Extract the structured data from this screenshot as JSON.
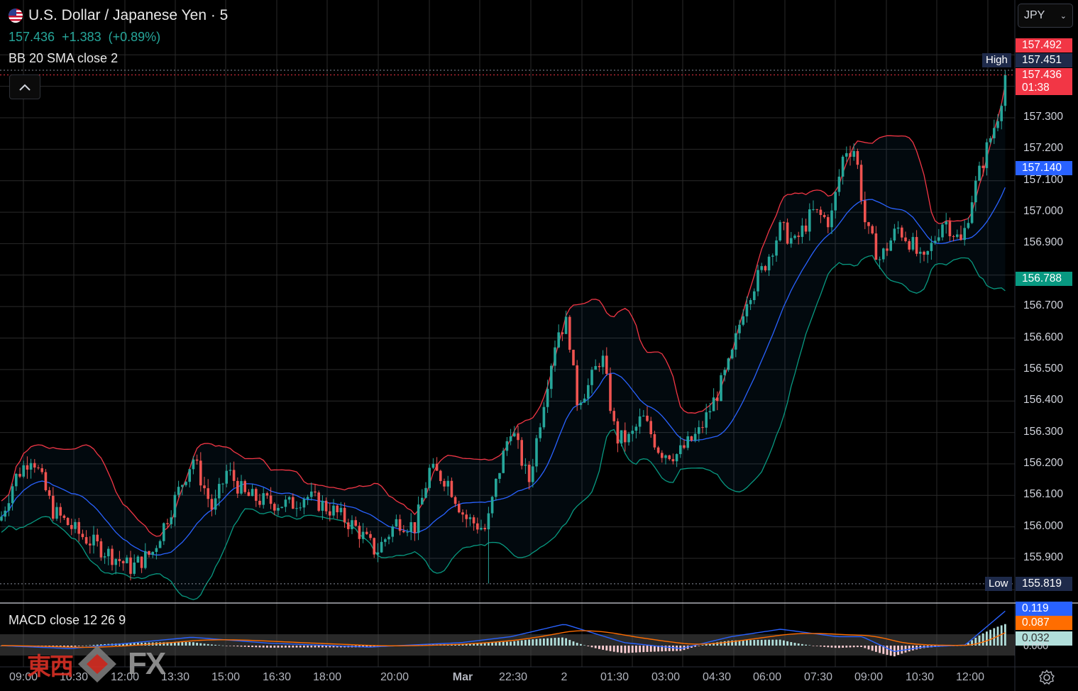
{
  "header": {
    "symbol_title": "U.S. Dollar / Japanese Yen · 5",
    "last_price": "157.436",
    "change": "+1.383",
    "change_pct": "(+0.89%)",
    "bb_indicator": "BB 20 SMA close 2",
    "macd_indicator": "MACD close 12 26 9"
  },
  "currency_select": {
    "value": "JPY"
  },
  "price_axis": {
    "labels": [
      "157.300",
      "157.200",
      "157.100",
      "157.000",
      "156.900",
      "156.700",
      "156.600",
      "156.500",
      "156.400",
      "156.300",
      "156.200",
      "156.100",
      "156.000",
      "155.900"
    ],
    "tags": {
      "upper_band": "157.492",
      "high_label": "High",
      "high": "157.451",
      "last": "157.436",
      "countdown": "01:38",
      "basis": "157.140",
      "lower_band": "156.788",
      "low_label": "Low",
      "low": "155.819"
    }
  },
  "macd_axis": {
    "macd": "0.119",
    "signal": "0.087",
    "histogram": "0.032",
    "zero": "0.000"
  },
  "time_axis": {
    "labels": [
      "09:00",
      "10:30",
      "12:00",
      "13:30",
      "15:00",
      "16:30",
      "18:00",
      "20:00",
      "Mar",
      "22:30",
      "2",
      "01:30",
      "03:00",
      "04:30",
      "06:00",
      "07:30",
      "09:00",
      "10:30",
      "12:00"
    ]
  },
  "watermark": {
    "cjk": "東西",
    "latin": "FX"
  },
  "colors": {
    "up": "#26a69a",
    "down": "#ef5350",
    "upper_band": "#f23645",
    "basis": "#2962ff",
    "lower_band": "#089981",
    "macd_line": "#2962ff",
    "signal_line": "#ff6d00"
  },
  "chart_data": {
    "type": "candlestick",
    "ylim": [
      155.75,
      157.55
    ],
    "price_keypoints": [
      [
        0,
        156.02
      ],
      [
        20,
        156.15
      ],
      [
        45,
        156.23
      ],
      [
        75,
        156.05
      ],
      [
        110,
        155.98
      ],
      [
        150,
        155.92
      ],
      [
        185,
        155.87
      ],
      [
        215,
        155.92
      ],
      [
        245,
        156.08
      ],
      [
        272,
        156.22
      ],
      [
        300,
        156.05
      ],
      [
        320,
        156.18
      ],
      [
        345,
        156.1
      ],
      [
        375,
        156.08
      ],
      [
        410,
        156.07
      ],
      [
        430,
        156.1
      ],
      [
        470,
        156.05
      ],
      [
        500,
        156.0
      ],
      [
        530,
        155.92
      ],
      [
        560,
        156.02
      ],
      [
        585,
        156.0
      ],
      [
        605,
        156.18
      ],
      [
        630,
        156.15
      ],
      [
        655,
        156.03
      ],
      [
        685,
        155.99
      ],
      [
        700,
        156.15
      ],
      [
        720,
        156.32
      ],
      [
        745,
        156.14
      ],
      [
        770,
        156.45
      ],
      [
        785,
        156.62
      ],
      [
        800,
        156.65
      ],
      [
        812,
        156.4
      ],
      [
        830,
        156.45
      ],
      [
        848,
        156.55
      ],
      [
        868,
        156.28
      ],
      [
        888,
        156.28
      ],
      [
        905,
        156.35
      ],
      [
        930,
        156.24
      ],
      [
        955,
        156.23
      ],
      [
        985,
        156.3
      ],
      [
        1010,
        156.42
      ],
      [
        1030,
        156.53
      ],
      [
        1050,
        156.72
      ],
      [
        1075,
        156.82
      ],
      [
        1100,
        156.95
      ],
      [
        1120,
        156.9
      ],
      [
        1145,
        157.0
      ],
      [
        1170,
        156.97
      ],
      [
        1190,
        157.2
      ],
      [
        1205,
        157.2
      ],
      [
        1220,
        156.95
      ],
      [
        1240,
        156.85
      ],
      [
        1265,
        156.95
      ],
      [
        1285,
        156.9
      ],
      [
        1300,
        156.83
      ],
      [
        1330,
        156.98
      ],
      [
        1355,
        156.9
      ],
      [
        1370,
        157.05
      ],
      [
        1390,
        157.2
      ],
      [
        1405,
        157.3
      ],
      [
        1418,
        157.44
      ]
    ],
    "low_wick_at": [
      688,
      155.82
    ],
    "macd_keypoints": [
      [
        0,
        0.0
      ],
      [
        100,
        -0.01
      ],
      [
        270,
        0.028
      ],
      [
        380,
        0.008
      ],
      [
        520,
        -0.005
      ],
      [
        650,
        0.01
      ],
      [
        720,
        0.03
      ],
      [
        795,
        0.072
      ],
      [
        880,
        0.01
      ],
      [
        960,
        -0.01
      ],
      [
        1030,
        0.03
      ],
      [
        1100,
        0.055
      ],
      [
        1180,
        0.03
      ],
      [
        1215,
        0.03
      ],
      [
        1260,
        -0.02
      ],
      [
        1300,
        -0.005
      ],
      [
        1360,
        0.002
      ],
      [
        1418,
        0.119
      ]
    ]
  }
}
